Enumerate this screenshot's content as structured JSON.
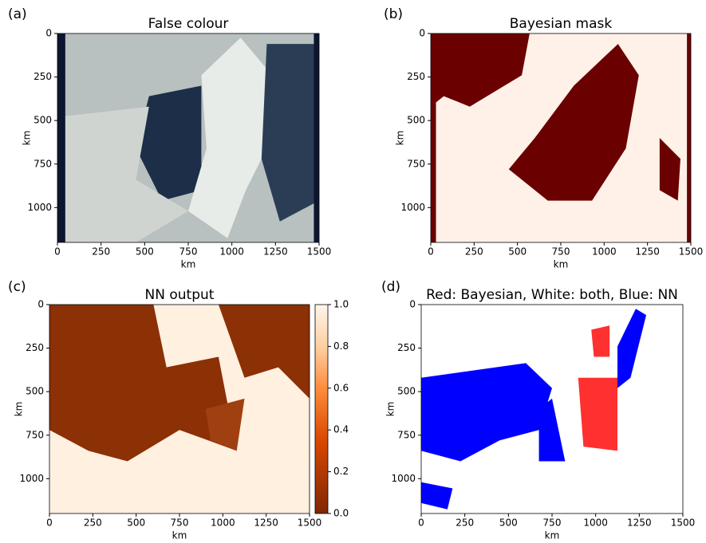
{
  "chart_data": [
    {
      "type": "image",
      "panel_label": "(a)",
      "title": "False colour",
      "xlabel": "km",
      "ylabel": "km",
      "xlim": [
        0,
        1500
      ],
      "ylim": [
        1200,
        0
      ],
      "xticks": [
        0,
        250,
        500,
        750,
        1000,
        1250,
        1500
      ],
      "yticks": [
        0,
        250,
        500,
        750,
        1000
      ]
    },
    {
      "type": "image",
      "panel_label": "(b)",
      "title": "Bayesian mask",
      "xlabel": "km",
      "ylabel": "km",
      "xlim": [
        0,
        1500
      ],
      "ylim": [
        1200,
        0
      ],
      "xticks": [
        0,
        250,
        500,
        750,
        1000,
        1250,
        1500
      ],
      "yticks": [
        0,
        250,
        500,
        750,
        1000
      ]
    },
    {
      "type": "image",
      "panel_label": "(c)",
      "title": "NN output",
      "xlabel": "km",
      "ylabel": "km",
      "xlim": [
        0,
        1500
      ],
      "ylim": [
        1200,
        0
      ],
      "xticks": [
        0,
        250,
        500,
        750,
        1000,
        1250,
        1500
      ],
      "yticks": [
        0,
        250,
        500,
        750,
        1000
      ],
      "colorbar": {
        "lim": [
          0,
          1
        ],
        "ticks": [
          {
            "value": 0,
            "label": "0.0"
          },
          0.2,
          0.4,
          0.6,
          0.8,
          {
            "value": 1,
            "label": "1.0"
          }
        ]
      }
    },
    {
      "type": "image",
      "panel_label": "(d)",
      "title": "Red: Bayesian, White: both, Blue: NN",
      "xlabel": "km",
      "ylabel": "km",
      "xlim": [
        0,
        1500
      ],
      "ylim": [
        1200,
        0
      ],
      "xticks": [
        0,
        250,
        500,
        750,
        1000,
        1250,
        1500
      ],
      "yticks": [
        0,
        250,
        500,
        750,
        1000
      ]
    }
  ]
}
